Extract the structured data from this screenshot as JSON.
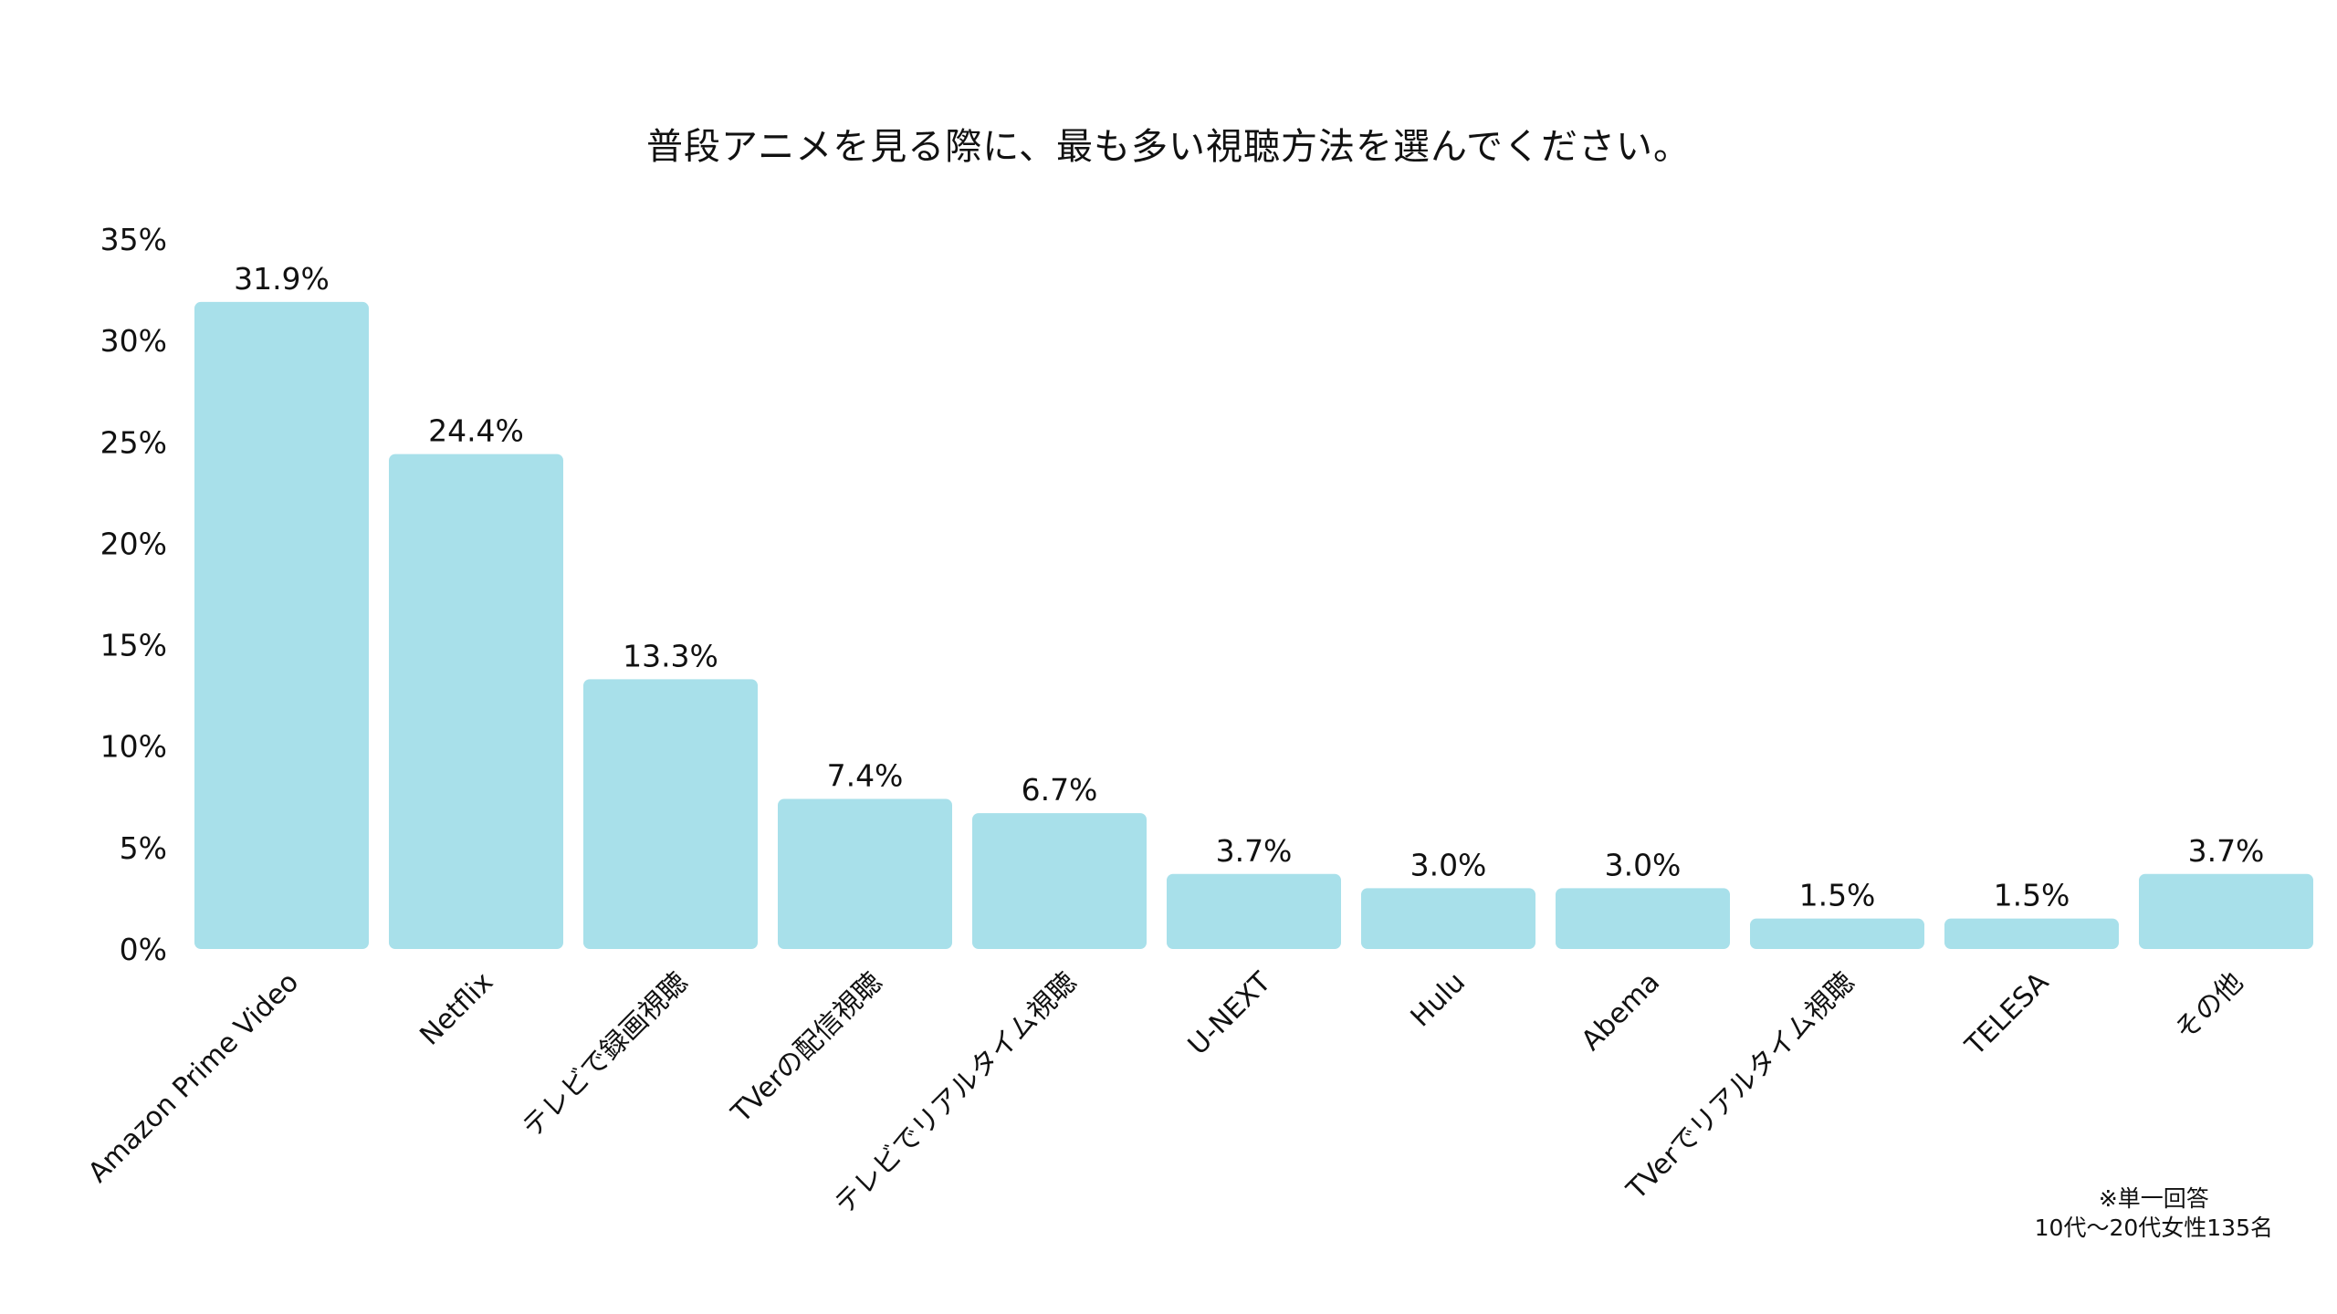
{
  "chart_data": {
    "type": "bar",
    "title": "普段アニメを見る際に、最も多い視聴方法を選んでください。",
    "xlabel": "",
    "ylabel": "",
    "ylim": [
      0,
      35
    ],
    "yticks": [
      "0%",
      "5%",
      "10%",
      "15%",
      "20%",
      "25%",
      "30%",
      "35%"
    ],
    "grid": false,
    "bar_color": "#A8E0EA",
    "categories": [
      "Amazon Prime Video",
      "Netflix",
      "テレビで録画視聴",
      "TVerの配信視聴",
      "テレビでリアルタイム視聴",
      "U-NEXT",
      "Hulu",
      "Abema",
      "TVerでリアルタイム視聴",
      "TELESA",
      "その他"
    ],
    "values": [
      31.9,
      24.4,
      13.3,
      7.4,
      6.7,
      3.7,
      3.0,
      3.0,
      1.5,
      1.5,
      3.7
    ],
    "value_labels": [
      "31.9%",
      "24.4%",
      "13.3%",
      "7.4%",
      "6.7%",
      "3.7%",
      "3.0%",
      "3.0%",
      "1.5%",
      "1.5%",
      "3.7%"
    ]
  },
  "notes": {
    "line1": "※単一回答",
    "line2": "10代〜20代女性135名"
  }
}
